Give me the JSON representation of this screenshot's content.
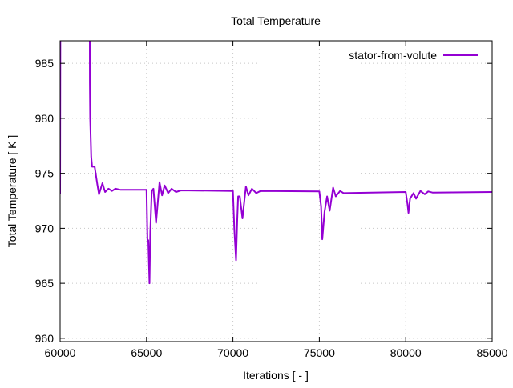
{
  "chart_data": {
    "type": "line",
    "title": "Total Temperature",
    "xlabel": "Iterations [ - ]",
    "ylabel": "Total Temperature [ K ]",
    "xlim": [
      60000,
      85000
    ],
    "ylim": [
      959.7,
      987.05
    ],
    "xticks": [
      60000,
      65000,
      70000,
      75000,
      80000,
      85000
    ],
    "yticks": [
      960,
      965,
      970,
      975,
      980,
      985
    ],
    "grid": true,
    "legend_position": "top-right",
    "series": [
      {
        "name": "stator-from-volute",
        "color": "#9400d3",
        "x": [
          60000,
          60030,
          61700,
          61720,
          61740,
          61800,
          61850,
          62000,
          62150,
          62250,
          62450,
          62600,
          62800,
          63000,
          63200,
          63500,
          65000,
          65050,
          65100,
          65170,
          65220,
          65300,
          65400,
          65550,
          65750,
          65900,
          66050,
          66250,
          66450,
          66700,
          67000,
          70000,
          70080,
          70180,
          70250,
          70300,
          70400,
          70550,
          70750,
          70900,
          71100,
          71350,
          71600,
          75000,
          75100,
          75170,
          75300,
          75450,
          75600,
          75800,
          75950,
          76200,
          76400,
          80000,
          80100,
          80160,
          80250,
          80450,
          80600,
          80850,
          81100,
          81300,
          81550,
          85000
        ],
        "y": [
          973.1,
          1000,
          1000,
          983.2,
          980,
          976.5,
          975.6,
          975.6,
          974,
          973.1,
          974.1,
          973.3,
          973.6,
          973.4,
          973.6,
          973.5,
          973.5,
          969,
          968.9,
          965,
          969.7,
          973.4,
          973.6,
          970.5,
          974.2,
          973,
          973.9,
          973.2,
          973.6,
          973.3,
          973.45,
          973.4,
          970,
          967.1,
          970.8,
          972.9,
          972.9,
          970.9,
          973.8,
          973,
          973.6,
          973.2,
          973.4,
          973.35,
          972,
          969,
          971.5,
          972.9,
          971.6,
          973.7,
          972.9,
          973.4,
          973.2,
          973.3,
          972.2,
          971.4,
          972.7,
          973.2,
          972.7,
          973.4,
          973.1,
          973.35,
          973.25,
          973.3
        ]
      }
    ]
  }
}
